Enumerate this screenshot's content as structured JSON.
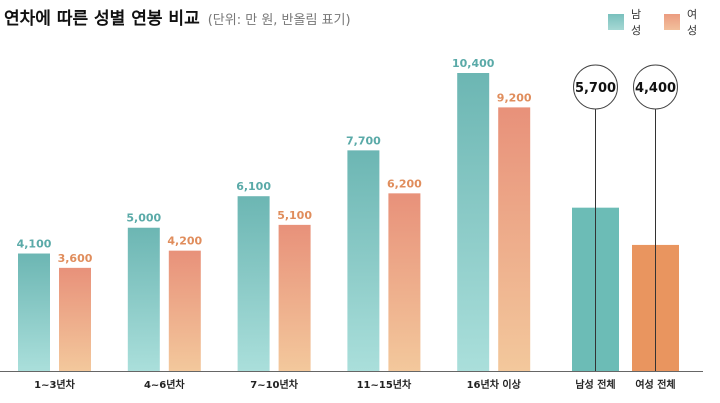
{
  "chart_data": {
    "type": "bar",
    "title": "연차에 따른 성별 연봉 비교",
    "subtitle": "(단위: 만 원, 반올림 표기)",
    "categories": [
      "1~3년차",
      "4~6년차",
      "7~10년차",
      "11~15년차",
      "16년차 이상"
    ],
    "series": [
      {
        "name": "남성",
        "values": [
          4100,
          5000,
          6100,
          7700,
          10400
        ],
        "color": "#6bb8b5"
      },
      {
        "name": "여성",
        "values": [
          3600,
          4200,
          5100,
          6200,
          9200
        ],
        "color": "#e9967a"
      }
    ],
    "totals": [
      {
        "label": "남성 전체",
        "value": 5700,
        "value_label": "5,700",
        "color": "#6cbcb6"
      },
      {
        "label": "여성 전체",
        "value": 4400,
        "value_label": "4,400",
        "color": "#e9955f"
      }
    ],
    "value_labels": [
      [
        "4,100",
        "5,000",
        "6,100",
        "7,700",
        "10,400"
      ],
      [
        "3,600",
        "4,200",
        "5,100",
        "6,200",
        "9,200"
      ]
    ],
    "ylim": [
      0,
      10400
    ],
    "grid": false,
    "legend_position": "top-right",
    "label_colors": {
      "male": "#5aaaa8",
      "female": "#e08d5c"
    }
  }
}
